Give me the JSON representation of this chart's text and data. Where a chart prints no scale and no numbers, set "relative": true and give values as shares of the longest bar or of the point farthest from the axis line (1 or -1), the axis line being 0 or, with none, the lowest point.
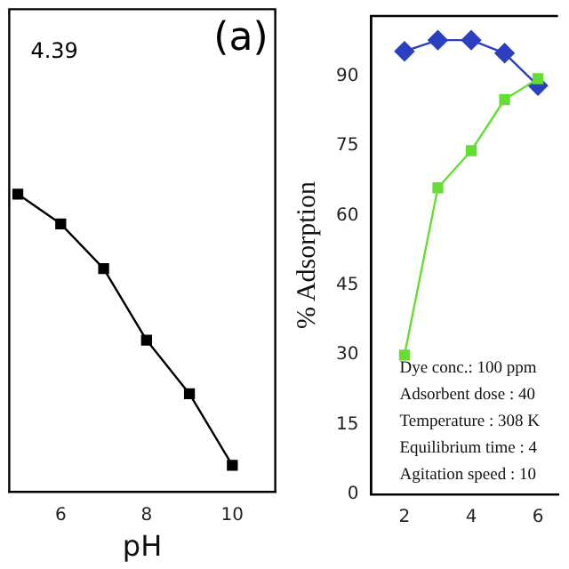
{
  "chart_data": [
    {
      "type": "line",
      "xlabel": "pH",
      "x": [
        5,
        6,
        7,
        8,
        9,
        10
      ],
      "values": [
        1,
        0.9,
        0.75,
        0.51,
        0.33,
        0.09
      ],
      "color": "#000000",
      "relative": true,
      "marker": "square",
      "xlim": [
        4.8,
        11
      ],
      "xticks": [
        6,
        8,
        10
      ],
      "grid": false,
      "legend": false,
      "annotations": [
        "(a)",
        "4.39"
      ]
    },
    {
      "type": "line",
      "ylabel": "% Adsorption",
      "x": [
        2,
        3,
        4,
        5,
        6
      ],
      "series": [
        {
          "color": "#66dd33",
          "values": [
            30,
            66,
            74,
            85,
            89.5
          ],
          "marker": "square"
        },
        {
          "color": "#2b3fbf",
          "values": [
            95.4,
            97.8,
            97.8,
            95,
            88
          ],
          "marker": "diamond"
        }
      ],
      "xlim": [
        1,
        6.6
      ],
      "ylim": [
        0,
        103
      ],
      "xticks": [
        2,
        4,
        6
      ],
      "yticks": [
        0,
        15,
        30,
        45,
        60,
        75,
        90
      ],
      "grid": false,
      "legend": false,
      "annotations": [
        "Dye conc.: 100 ppm",
        "Adsorbent dose : 40",
        "Temperature : 308 K",
        "Equilibrium time : 4",
        "Agitation speed : 10"
      ]
    }
  ]
}
